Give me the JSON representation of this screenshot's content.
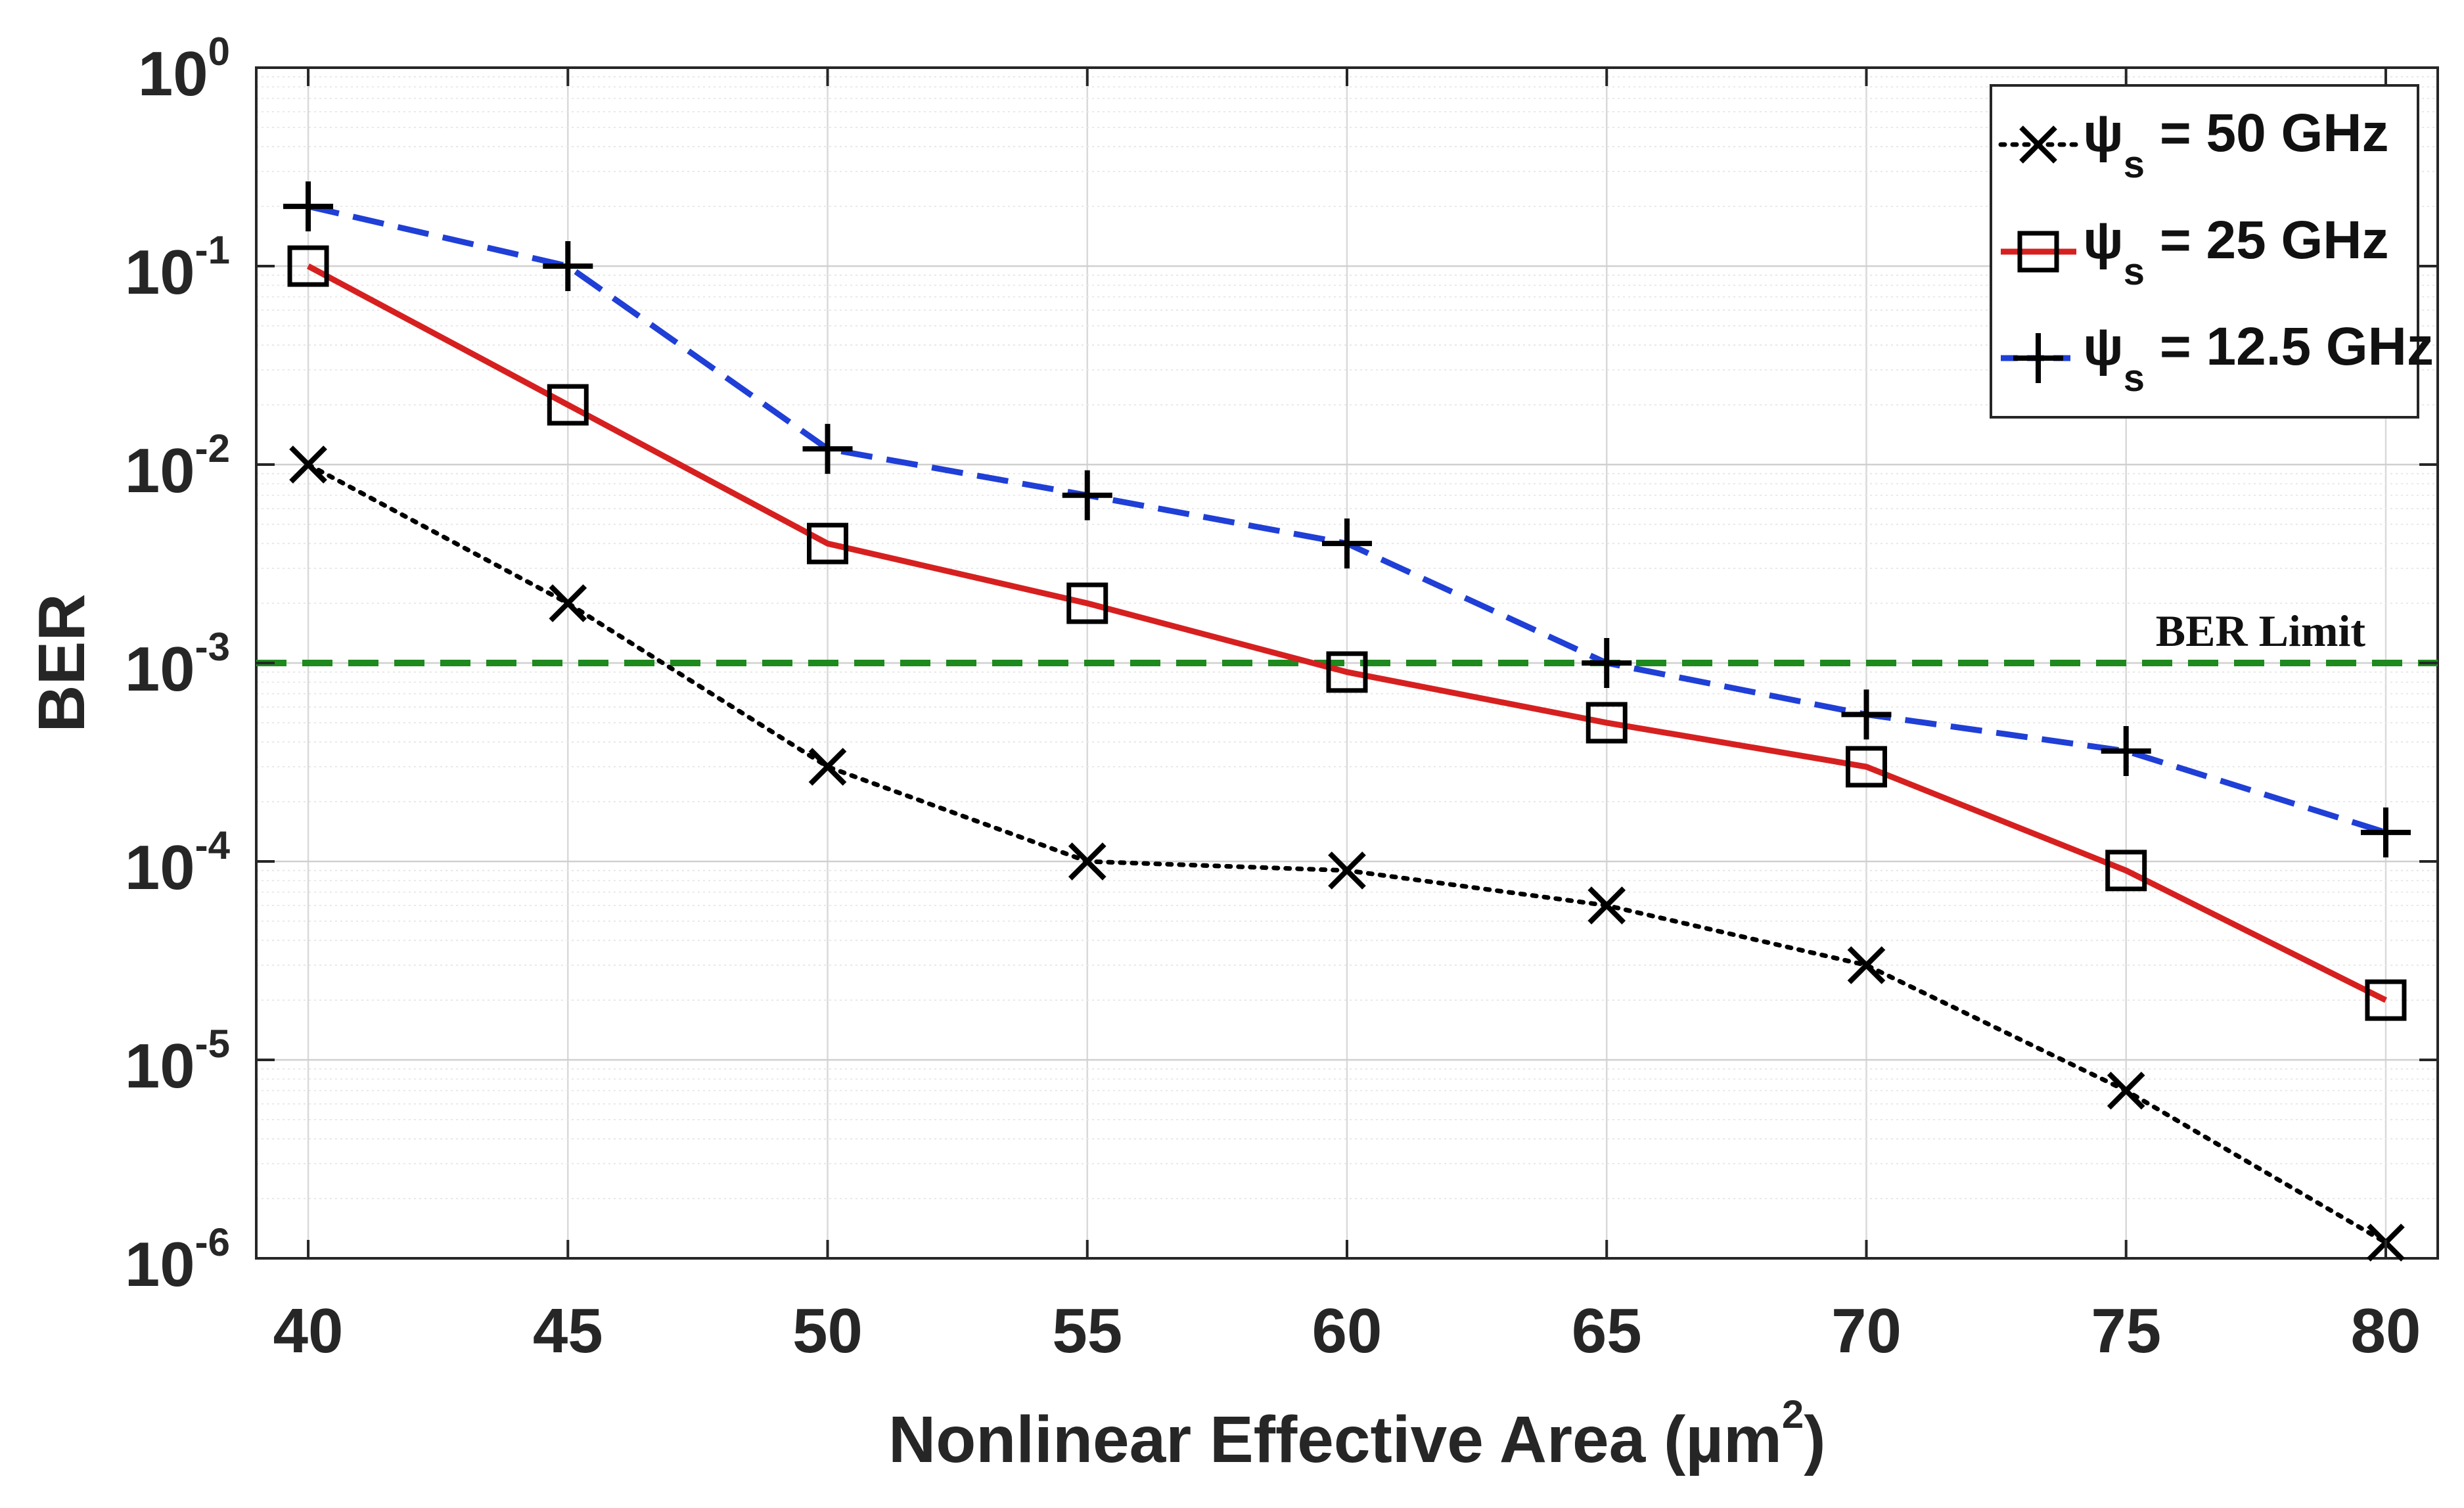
{
  "chart_data": {
    "type": "line",
    "title": "",
    "xlabel": "Nonlinear Effective Area  (µm",
    "xlabel_sup": "2",
    "xlabel_tail": ")",
    "ylabel": "BER",
    "yscale": "log",
    "x": [
      40,
      45,
      50,
      55,
      60,
      65,
      70,
      75,
      80
    ],
    "xlim": [
      39,
      81
    ],
    "ylim": [
      1e-06,
      1
    ],
    "x_ticks": [
      "40",
      "45",
      "50",
      "55",
      "60",
      "65",
      "70",
      "75",
      "80"
    ],
    "y_ticks": [
      {
        "base": "10",
        "exp": "0",
        "value": 1
      },
      {
        "base": "10",
        "exp": "-1",
        "value": 0.1
      },
      {
        "base": "10",
        "exp": "-2",
        "value": 0.01
      },
      {
        "base": "10",
        "exp": "-3",
        "value": 0.001
      },
      {
        "base": "10",
        "exp": "-4",
        "value": 0.0001
      },
      {
        "base": "10",
        "exp": "-5",
        "value": 1e-05
      },
      {
        "base": "10",
        "exp": "-6",
        "value": 1e-06
      }
    ],
    "grid": true,
    "legend_position": "top-right",
    "series": [
      {
        "name_prefix": "ψ",
        "name_sub": "s",
        "name_suffix": " = 50 GHz",
        "marker": "x",
        "line_style": "dotted",
        "color": "#000000",
        "values": [
          0.01,
          0.002,
          0.0003,
          0.0001,
          9e-05,
          6e-05,
          3e-05,
          7e-06,
          1.2e-06
        ]
      },
      {
        "name_prefix": "ψ",
        "name_sub": "s",
        "name_suffix": " = 25 GHz",
        "marker": "square",
        "line_style": "solid",
        "color": "#d62020",
        "values": [
          0.1,
          0.02,
          0.004,
          0.002,
          0.0009,
          0.0005,
          0.0003,
          9e-05,
          2e-05
        ]
      },
      {
        "name_prefix": "ψ",
        "name_sub": "s",
        "name_suffix": " = 12.5 GHz",
        "marker": "plus",
        "line_style": "dashed",
        "color": "#1f3fd6",
        "values": [
          0.2,
          0.1,
          0.012,
          0.007,
          0.004,
          0.001,
          0.00055,
          0.00036,
          0.00014
        ]
      }
    ],
    "reference_lines": [
      {
        "label": "BER Limit",
        "value": 0.001,
        "color": "#1e8a1e",
        "line_style": "dashed"
      }
    ]
  }
}
